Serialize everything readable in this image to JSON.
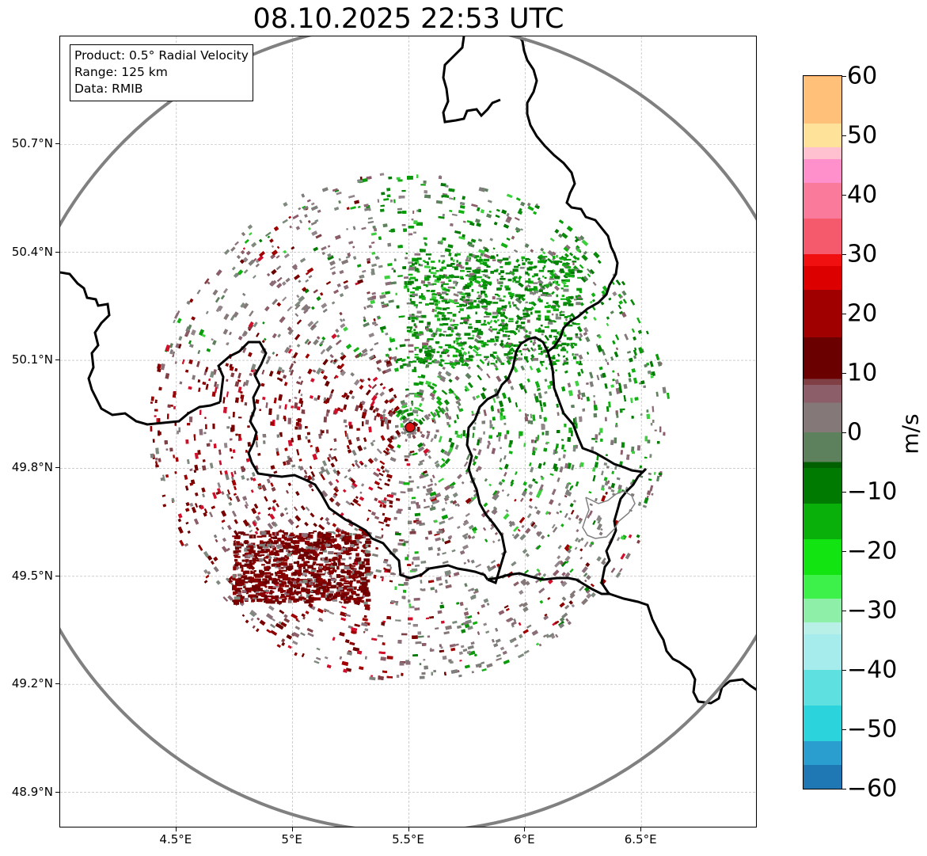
{
  "title": "08.10.2025 22:53 UTC",
  "info_box": {
    "product": "Product: 0.5° Radial Velocity",
    "range": "Range: 125 km",
    "source": "Data: RMIB"
  },
  "map": {
    "lon_range": [
      4.0,
      7.0
    ],
    "lat_range": [
      48.8,
      51.0
    ],
    "radar_site": {
      "lon": 5.505,
      "lat": 49.914
    },
    "range_km": 125,
    "grid": true,
    "lat_ticks": [
      {
        "value": 50.7,
        "label": "50.7°N"
      },
      {
        "value": 50.4,
        "label": "50.4°N"
      },
      {
        "value": 50.1,
        "label": "50.1°N"
      },
      {
        "value": 49.8,
        "label": "49.8°N"
      },
      {
        "value": 49.5,
        "label": "49.5°N"
      },
      {
        "value": 49.2,
        "label": "49.2°N"
      },
      {
        "value": 48.9,
        "label": "48.9°N"
      }
    ],
    "lon_ticks": [
      {
        "value": 4.5,
        "label": "4.5°E"
      },
      {
        "value": 5.0,
        "label": "5°E"
      },
      {
        "value": 5.5,
        "label": "5.5°E"
      },
      {
        "value": 6.0,
        "label": "6°E"
      },
      {
        "value": 6.5,
        "label": "6.5°E"
      }
    ],
    "colors": {
      "range_ring": "#808080",
      "border": "#000000",
      "sub_border": "#808080",
      "grid": "#b0b0b0",
      "radar_marker": "#dd1111"
    }
  },
  "colorbar": {
    "label": "m/s",
    "min": -60,
    "max": 60,
    "ticks": [
      {
        "value": 60,
        "label": "60"
      },
      {
        "value": 50,
        "label": "50"
      },
      {
        "value": 40,
        "label": "40"
      },
      {
        "value": 30,
        "label": "30"
      },
      {
        "value": 20,
        "label": "20"
      },
      {
        "value": 10,
        "label": "10"
      },
      {
        "value": 0,
        "label": "0"
      },
      {
        "value": -10,
        "label": "−10"
      },
      {
        "value": -20,
        "label": "−20"
      },
      {
        "value": -30,
        "label": "−30"
      },
      {
        "value": -40,
        "label": "−40"
      },
      {
        "value": -50,
        "label": "−50"
      },
      {
        "value": -60,
        "label": "−60"
      }
    ],
    "stops": [
      {
        "value": -60,
        "color": "#1f77b4"
      },
      {
        "value": -56,
        "color": "#2a9fcf"
      },
      {
        "value": -52,
        "color": "#2bd4dc"
      },
      {
        "value": -46,
        "color": "#5ee0e0"
      },
      {
        "value": -40,
        "color": "#a6ecec"
      },
      {
        "value": -34,
        "color": "#b8f0e8"
      },
      {
        "value": -32,
        "color": "#8ef0a8"
      },
      {
        "value": -28,
        "color": "#3ef04a"
      },
      {
        "value": -24,
        "color": "#12e412"
      },
      {
        "value": -18,
        "color": "#0ab00a"
      },
      {
        "value": -12,
        "color": "#017a01"
      },
      {
        "value": -6,
        "color": "#006000"
      },
      {
        "value": -5,
        "color": "#5d805d"
      },
      {
        "value": 0,
        "color": "#857878"
      },
      {
        "value": 5,
        "color": "#8c5e6a"
      },
      {
        "value": 8,
        "color": "#803e45"
      },
      {
        "value": 9,
        "color": "#6a0000"
      },
      {
        "value": 16,
        "color": "#a00000"
      },
      {
        "value": 24,
        "color": "#dd0000"
      },
      {
        "value": 28,
        "color": "#f01010"
      },
      {
        "value": 30,
        "color": "#f55a6c"
      },
      {
        "value": 36,
        "color": "#fa7a9c"
      },
      {
        "value": 42,
        "color": "#ff90cc"
      },
      {
        "value": 46,
        "color": "#ffc0d0"
      },
      {
        "value": 48,
        "color": "#ffe29a"
      },
      {
        "value": 52,
        "color": "#ffc07a"
      },
      {
        "value": 60,
        "color": "#ff9a52"
      }
    ]
  }
}
